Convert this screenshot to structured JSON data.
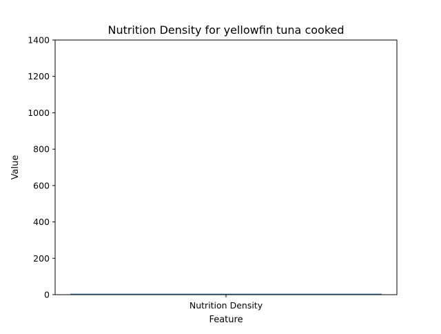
{
  "chart_data": {
    "type": "bar",
    "title": "Nutrition Density for yellowfin tuna cooked",
    "xlabel": "Feature",
    "ylabel": "Value",
    "categories": [
      "Nutrition Density"
    ],
    "values": [
      5
    ],
    "ylim": [
      0,
      1400
    ],
    "yticks": [
      0,
      200,
      400,
      600,
      800,
      1000,
      1200,
      1400
    ],
    "grid": false,
    "legend": "none",
    "bar_color": "#1f77b4"
  }
}
